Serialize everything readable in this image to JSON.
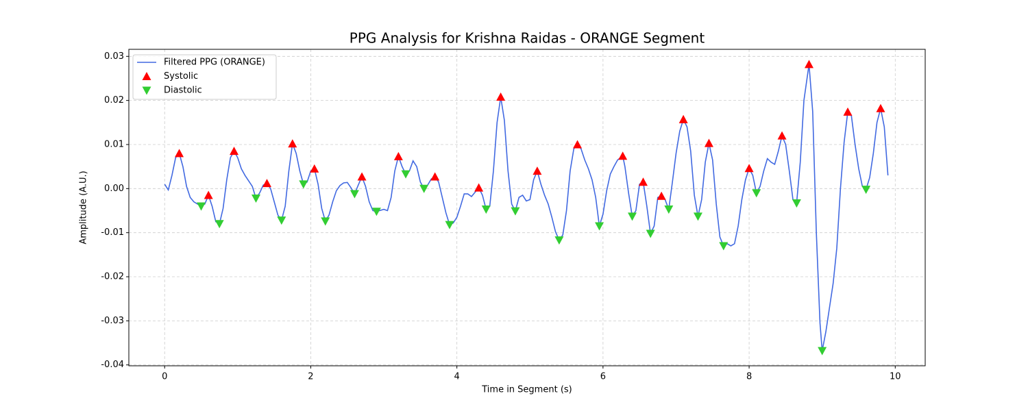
{
  "chart_data": {
    "type": "line",
    "title": "PPG Analysis for Krishna Raidas - ORANGE Segment",
    "xlabel": "Time in Segment (s)",
    "ylabel": "Amplitude (A.U.)",
    "xlim": [
      -0.49,
      10.41
    ],
    "ylim": [
      -0.0402,
      0.0316
    ],
    "xticks": [
      0,
      2,
      4,
      6,
      8,
      10
    ],
    "yticks": [
      0.03,
      0.02,
      0.01,
      {
        "value": 0,
        "label": "0.00"
      },
      -0.01,
      -0.02,
      -0.03,
      -0.04
    ],
    "grid": true,
    "legend": "upper left",
    "series": [
      {
        "name": "Filtered PPG (ORANGE)",
        "type": "line",
        "color": "#4169e1",
        "x": [
          0,
          0.05,
          0.1,
          0.15,
          0.2,
          0.25,
          0.3,
          0.35,
          0.4,
          0.5,
          0.55,
          0.6,
          0.65,
          0.7,
          0.75,
          0.8,
          0.85,
          0.9,
          0.95,
          1.0,
          1.05,
          1.1,
          1.2,
          1.25,
          1.3,
          1.35,
          1.4,
          1.45,
          1.5,
          1.55,
          1.6,
          1.65,
          1.7,
          1.75,
          1.8,
          1.85,
          1.9,
          1.95,
          2.0,
          2.05,
          2.1,
          2.15,
          2.2,
          2.25,
          2.3,
          2.35,
          2.4,
          2.45,
          2.5,
          2.55,
          2.6,
          2.65,
          2.7,
          2.75,
          2.8,
          2.85,
          2.9,
          3.0,
          3.05,
          3.1,
          3.15,
          3.2,
          3.25,
          3.3,
          3.35,
          3.4,
          3.45,
          3.5,
          3.55,
          3.6,
          3.65,
          3.7,
          3.75,
          3.8,
          3.85,
          3.9,
          3.95,
          4.0,
          4.05,
          4.1,
          4.15,
          4.2,
          4.25,
          4.3,
          4.35,
          4.4,
          4.45,
          4.5,
          4.55,
          4.6,
          4.65,
          4.7,
          4.75,
          4.8,
          4.85,
          4.9,
          4.95,
          5.0,
          5.05,
          5.1,
          5.15,
          5.2,
          5.25,
          5.3,
          5.35,
          5.4,
          5.45,
          5.5,
          5.55,
          5.6,
          5.65,
          5.7,
          5.75,
          5.8,
          5.85,
          5.9,
          5.95,
          6.0,
          6.05,
          6.1,
          6.15,
          6.2,
          6.27,
          6.3,
          6.35,
          6.4,
          6.45,
          6.5,
          6.55,
          6.6,
          6.65,
          6.7,
          6.75,
          6.8,
          6.85,
          6.9,
          6.95,
          7.0,
          7.05,
          7.1,
          7.15,
          7.2,
          7.25,
          7.3,
          7.35,
          7.4,
          7.45,
          7.5,
          7.55,
          7.6,
          7.65,
          7.7,
          7.75,
          7.8,
          7.85,
          7.9,
          7.95,
          8.0,
          8.05,
          8.1,
          8.15,
          8.2,
          8.25,
          8.3,
          8.35,
          8.4,
          8.45,
          8.5,
          8.55,
          8.6,
          8.65,
          8.7,
          8.75,
          8.82,
          8.87,
          8.92,
          8.97,
          9.0,
          9.05,
          9.1,
          9.15,
          9.2,
          9.25,
          9.3,
          9.35,
          9.4,
          9.45,
          9.5,
          9.55,
          9.6,
          9.65,
          9.7,
          9.75,
          9.8,
          9.85,
          9.9
        ],
        "values": [
          0.001,
          -0.0003,
          0.003,
          0.007,
          0.008,
          0.005,
          0.0005,
          -0.002,
          -0.003,
          -0.004,
          -0.0035,
          -0.0015,
          -0.004,
          -0.0075,
          -0.008,
          -0.0045,
          0.002,
          0.007,
          0.0085,
          0.007,
          0.0045,
          0.003,
          0.0005,
          -0.0022,
          -0.001,
          0.0008,
          0.0012,
          0.0,
          -0.003,
          -0.006,
          -0.0072,
          -0.004,
          0.004,
          0.0102,
          0.008,
          0.004,
          0.001,
          0.0015,
          0.004,
          0.0045,
          0.001,
          -0.0045,
          -0.0074,
          -0.006,
          -0.003,
          -0.0005,
          0.0007,
          0.0013,
          0.0014,
          0.0002,
          -0.0012,
          0.0008,
          0.0027,
          0.0005,
          -0.003,
          -0.005,
          -0.0052,
          -0.0047,
          -0.005,
          -0.002,
          0.004,
          0.0073,
          0.005,
          0.0033,
          0.004,
          0.0063,
          0.005,
          0.0015,
          0.0,
          0.0008,
          0.0022,
          0.0027,
          0.0015,
          -0.002,
          -0.0055,
          -0.0082,
          -0.0078,
          -0.0065,
          -0.004,
          -0.0012,
          -0.0012,
          -0.0018,
          -0.0008,
          0.0002,
          -0.0015,
          -0.0047,
          -0.004,
          0.004,
          0.015,
          0.0208,
          0.0155,
          0.004,
          -0.0035,
          -0.0051,
          -0.002,
          -0.0015,
          -0.0028,
          -0.0025,
          0.002,
          0.004,
          0.001,
          -0.0015,
          -0.0035,
          -0.0065,
          -0.0098,
          -0.0117,
          -0.0105,
          -0.005,
          0.004,
          0.009,
          0.01,
          0.009,
          0.0065,
          0.0045,
          0.002,
          -0.002,
          -0.0085,
          -0.0058,
          -0.0005,
          0.0033,
          0.005,
          0.0065,
          0.0074,
          0.005,
          -0.001,
          -0.0063,
          -0.005,
          0.001,
          0.0015,
          -0.004,
          -0.0102,
          -0.0085,
          -0.002,
          -0.0017,
          -0.0025,
          -0.0047,
          0.0015,
          0.008,
          0.013,
          0.0157,
          0.014,
          0.0085,
          -0.0015,
          -0.0063,
          -0.0025,
          0.006,
          0.0103,
          0.0065,
          -0.0035,
          -0.011,
          -0.013,
          -0.0125,
          -0.013,
          -0.0125,
          -0.0085,
          -0.0025,
          0.002,
          0.0046,
          0.003,
          -0.001,
          0.0005,
          0.004,
          0.0068,
          0.006,
          0.0055,
          0.0085,
          0.012,
          0.01,
          0.004,
          -0.0025,
          -0.0033,
          0.006,
          0.02,
          0.0282,
          0.0175,
          -0.01,
          -0.0305,
          -0.0368,
          -0.0325,
          -0.027,
          -0.0215,
          -0.0135,
          0.0,
          0.0105,
          0.0174,
          0.0165,
          0.01,
          0.0045,
          0.0005,
          -0.0002,
          0.0025,
          0.008,
          0.015,
          0.0182,
          0.014,
          0.003
        ]
      },
      {
        "name": "Systolic",
        "type": "scatter",
        "marker": "^",
        "color": "#ff0000",
        "x": [
          0.2,
          0.6,
          0.95,
          1.4,
          1.75,
          2.05,
          2.7,
          3.2,
          3.7,
          4.3,
          4.6,
          5.1,
          5.65,
          6.27,
          6.55,
          6.8,
          7.1,
          7.45,
          8.0,
          8.45,
          8.82,
          9.35,
          9.8
        ],
        "values": [
          0.008,
          -0.0015,
          0.0085,
          0.0012,
          0.0102,
          0.0045,
          0.0027,
          0.0073,
          0.0027,
          0.0002,
          0.0208,
          0.004,
          0.01,
          0.0074,
          0.0015,
          -0.0017,
          0.0157,
          0.0103,
          0.0046,
          0.012,
          0.0282,
          0.0174,
          0.0182
        ]
      },
      {
        "name": "Diastolic",
        "type": "scatter",
        "marker": "v",
        "color": "#32cd32",
        "x": [
          0.5,
          0.75,
          1.25,
          1.6,
          1.9,
          2.2,
          2.6,
          2.9,
          3.3,
          3.55,
          3.9,
          4.4,
          4.8,
          5.4,
          5.95,
          6.4,
          6.65,
          6.9,
          7.3,
          7.65,
          8.1,
          8.65,
          9.0,
          9.6
        ],
        "values": [
          -0.004,
          -0.008,
          -0.0022,
          -0.0072,
          0.001,
          -0.0074,
          -0.0012,
          -0.0052,
          0.0033,
          0.0,
          -0.0082,
          -0.0047,
          -0.0051,
          -0.0117,
          -0.0085,
          -0.0063,
          -0.0102,
          -0.0047,
          -0.0063,
          -0.013,
          -0.001,
          -0.0033,
          -0.0368,
          -0.0002
        ]
      }
    ]
  }
}
